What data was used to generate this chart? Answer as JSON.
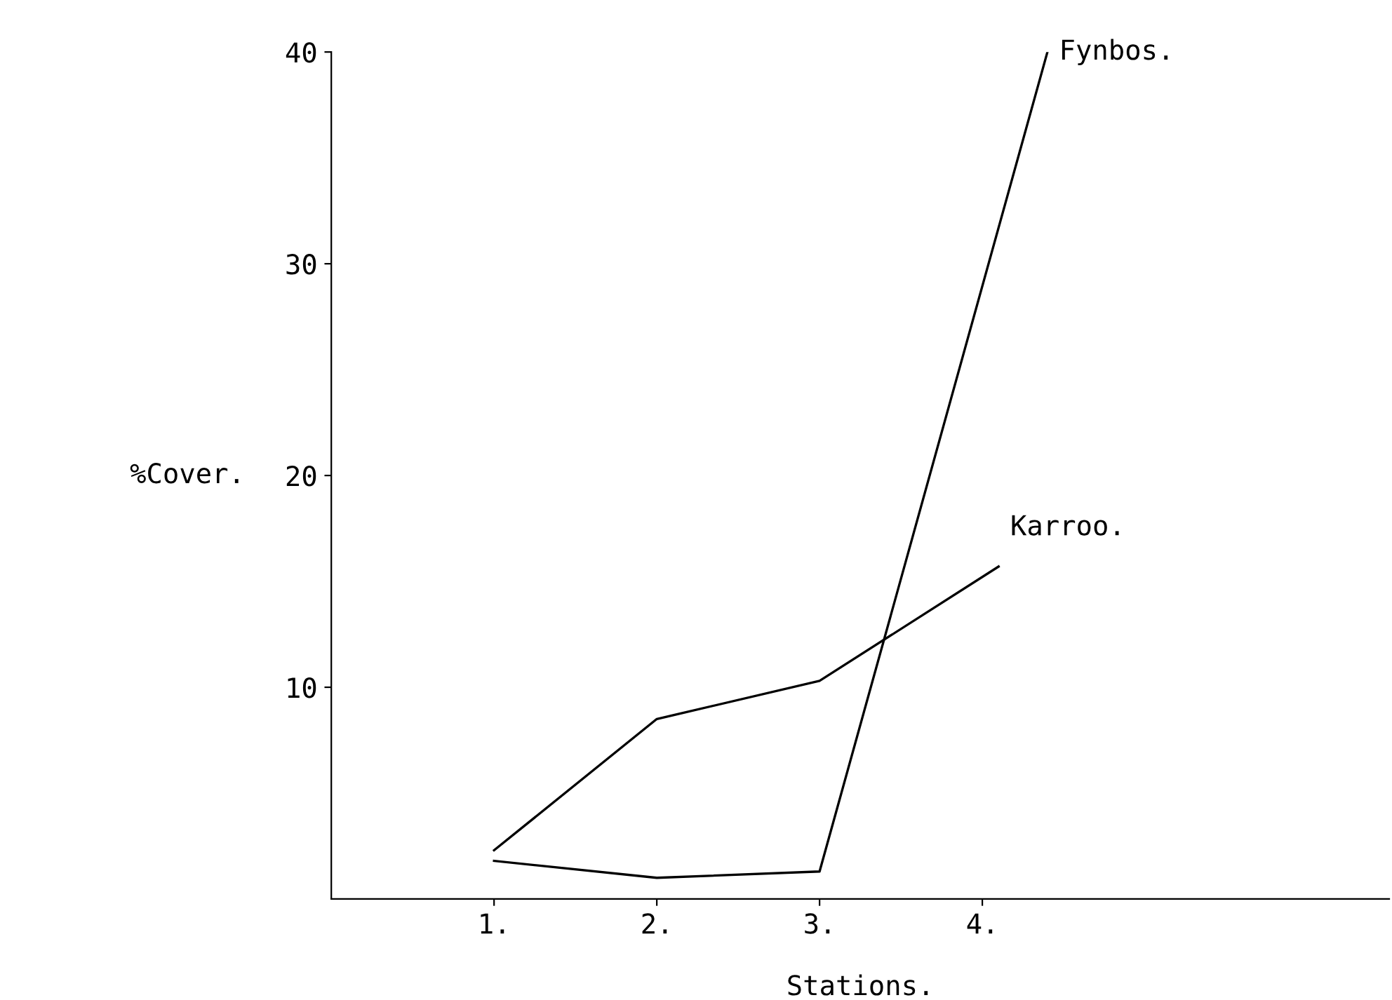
{
  "chart_data": {
    "type": "line",
    "xlabel": "Stations.",
    "ylabel": "%Cover.",
    "xlim": [
      0,
      6.5
    ],
    "xticks": [
      {
        "value": 1,
        "label": "1."
      },
      {
        "value": 2,
        "label": "2."
      },
      {
        "value": 3,
        "label": "3."
      },
      {
        "value": 4,
        "label": "4."
      }
    ],
    "ylim": [
      0,
      40
    ],
    "yticks": [
      10,
      20,
      30,
      40
    ],
    "grid": false,
    "legend": false,
    "marker": "none",
    "line_style": "solid",
    "series": [
      {
        "name": "Fynbos.",
        "color": "#000000",
        "x": [
          1,
          2,
          3,
          4.4
        ],
        "values": [
          1.8,
          1.0,
          1.3,
          40
        ]
      },
      {
        "name": "Karroo.",
        "color": "#000000",
        "x": [
          1,
          2,
          3,
          4.1
        ],
        "values": [
          2.3,
          8.5,
          10.3,
          15.7
        ]
      }
    ]
  }
}
